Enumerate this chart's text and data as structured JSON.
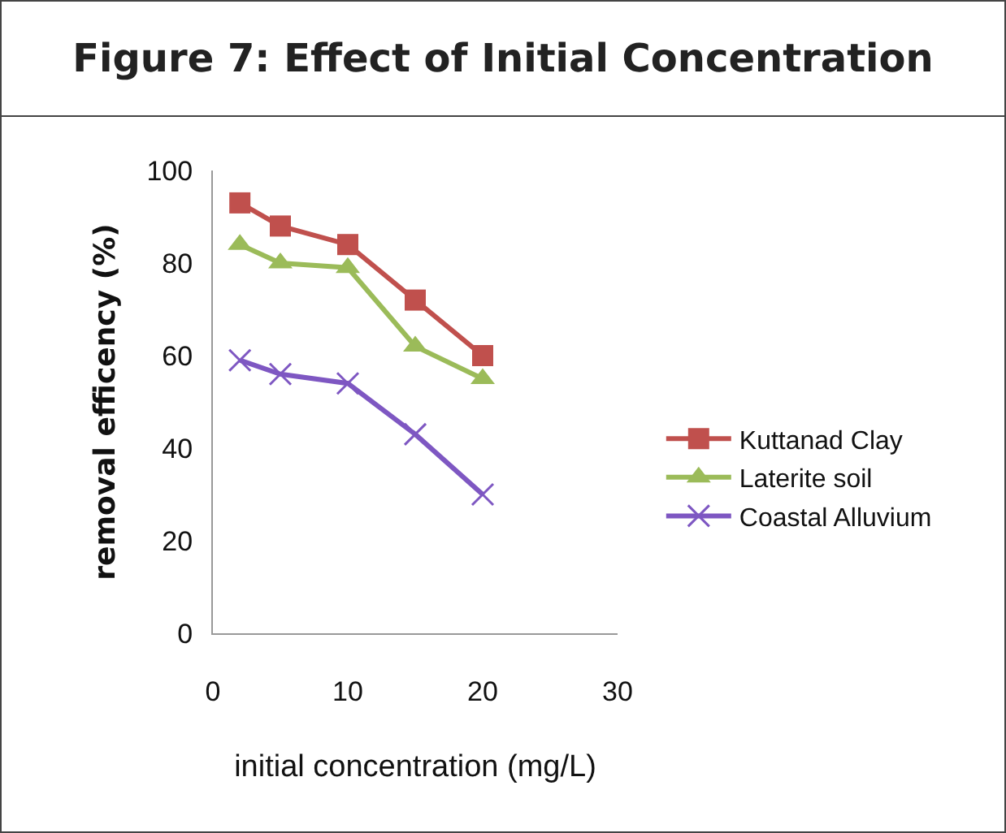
{
  "chart_data": {
    "type": "line",
    "title": "Figure 7: Effect of Initial Concentration",
    "xlabel": "initial concentration (mg/L)",
    "ylabel": "removal efficency (%)",
    "x": [
      2,
      5,
      10,
      15,
      20
    ],
    "series": [
      {
        "name": "Kuttanad Clay",
        "color": "#c0504d",
        "marker": "square",
        "values": [
          93,
          88,
          84,
          72,
          60
        ]
      },
      {
        "name": "Laterite soil",
        "color": "#9bbb59",
        "marker": "triangle",
        "values": [
          84,
          80,
          79,
          62,
          55
        ]
      },
      {
        "name": "Coastal Alluvium",
        "color": "#7e57c2",
        "marker": "cross",
        "values": [
          59,
          56,
          54,
          43,
          30
        ]
      }
    ],
    "xlim": [
      0,
      30
    ],
    "xticks": [
      0,
      10,
      20,
      30
    ],
    "ylim": [
      0,
      100
    ],
    "yticks": [
      0,
      20,
      40,
      60,
      80,
      100
    ],
    "grid": false,
    "legend": "right",
    "line_style": "solid"
  }
}
